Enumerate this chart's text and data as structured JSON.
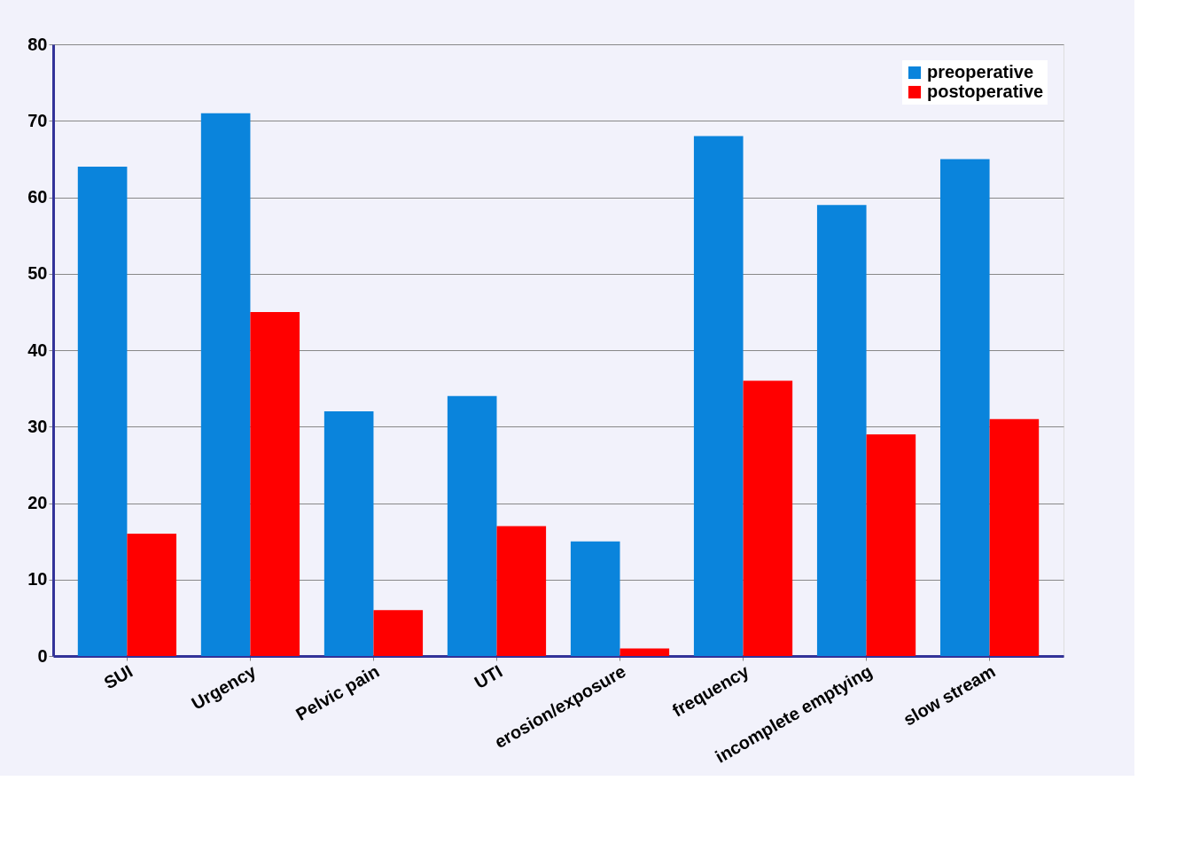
{
  "chart_data": {
    "type": "bar",
    "categories": [
      "SUI",
      "Urgency",
      "Pelvic pain",
      "UTI",
      "erosion/exposure",
      "frequency",
      "incomplete emptying",
      "slow stream"
    ],
    "series": [
      {
        "name": "preoperative",
        "color": "#0a84dc",
        "values": [
          64,
          71,
          32,
          34,
          15,
          68,
          59,
          65
        ]
      },
      {
        "name": "postoperative",
        "color": "#ff0000",
        "values": [
          16,
          45,
          6,
          17,
          1,
          36,
          29,
          31
        ]
      }
    ],
    "ylim": [
      0,
      80
    ],
    "yticks": [
      0,
      10,
      20,
      30,
      40,
      50,
      60,
      70,
      80
    ],
    "grid": "y",
    "legend": "top right"
  }
}
